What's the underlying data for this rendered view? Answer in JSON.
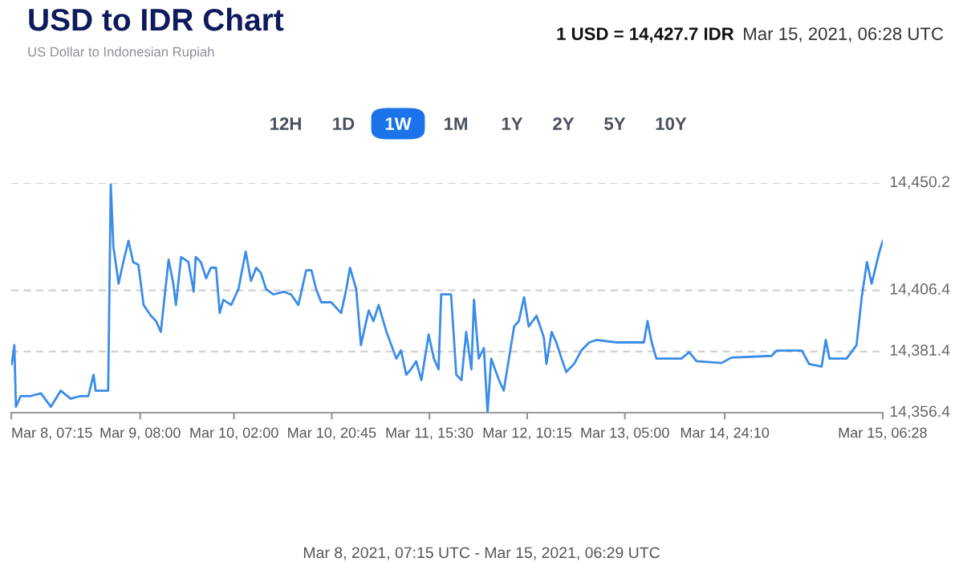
{
  "chart_data": {
    "type": "line",
    "title": "USD to IDR Chart",
    "subtitle": "US Dollar to Indonesian Rupiah",
    "annotations": [
      "1 USD = 14,427.7 IDR",
      "Mar 15, 2021, 06:28 UTC",
      "12H",
      "1D",
      "1W",
      "1M",
      "1Y",
      "2Y",
      "5Y",
      "10Y",
      "Mar 8, 2021, 07:15 UTC - Mar 15, 2021, 06:29 UTC"
    ],
    "x": [
      "2021-03-08T07:21",
      "2021-03-08T07:51",
      "2021-03-08T08:09",
      "2021-03-08T09:03",
      "2021-03-08T10:57",
      "2021-03-08T12:57",
      "2021-03-08T14:51",
      "2021-03-08T16:45",
      "2021-03-08T18:39",
      "2021-03-08T20:33",
      "2021-03-08T22:03",
      "2021-03-08T23:03",
      "2021-03-08T23:27",
      "2021-03-09T01:51",
      "2021-03-09T02:21",
      "2021-03-09T02:51",
      "2021-03-09T03:51",
      "2021-03-09T04:45",
      "2021-03-09T05:45",
      "2021-03-09T06:39",
      "2021-03-09T07:39",
      "2021-03-09T08:39",
      "2021-03-09T10:03",
      "2021-03-09T11:03",
      "2021-03-09T11:57",
      "2021-03-09T13:27",
      "2021-03-09T14:21",
      "2021-03-09T14:51",
      "2021-03-09T15:51",
      "2021-03-09T17:15",
      "2021-03-09T18:15",
      "2021-03-09T18:39",
      "2021-03-09T19:39",
      "2021-03-09T20:39",
      "2021-03-09T21:33",
      "2021-03-09T22:33",
      "2021-03-09T23:15",
      "2021-03-09T23:57",
      "2021-03-10T01:27",
      "2021-03-10T02:51",
      "2021-03-10T04:15",
      "2021-03-10T05:15",
      "2021-03-10T06:15",
      "2021-03-10T07:09",
      "2021-03-10T08:09",
      "2021-03-10T09:33",
      "2021-03-10T11:33",
      "2021-03-10T12:57",
      "2021-03-10T14:21",
      "2021-03-10T15:51",
      "2021-03-10T16:51",
      "2021-03-10T17:45",
      "2021-03-10T18:45",
      "2021-03-10T20:39",
      "2021-03-10T22:33",
      "2021-03-10T23:33",
      "2021-03-11T00:15",
      "2021-03-11T01:27",
      "2021-03-11T02:21",
      "2021-03-11T03:51",
      "2021-03-11T04:45",
      "2021-03-11T05:45",
      "2021-03-11T07:15",
      "2021-03-11T09:09",
      "2021-03-11T10:03",
      "2021-03-11T11:03",
      "2021-03-11T11:57",
      "2021-03-11T12:57",
      "2021-03-11T13:57",
      "2021-03-11T15:21",
      "2021-03-11T16:21",
      "2021-03-11T17:15",
      "2021-03-11T17:45",
      "2021-03-11T18:45",
      "2021-03-11T19:39",
      "2021-03-11T20:39",
      "2021-03-11T21:39",
      "2021-03-11T22:33",
      "2021-03-11T23:33",
      "2021-03-12T00:03",
      "2021-03-12T00:57",
      "2021-03-12T01:57",
      "2021-03-12T02:39",
      "2021-03-12T03:21",
      "2021-03-12T04:51",
      "2021-03-12T05:45",
      "2021-03-12T06:45",
      "2021-03-12T07:45",
      "2021-03-12T08:39",
      "2021-03-12T09:39",
      "2021-03-12T10:33",
      "2021-03-12T12:03",
      "2021-03-12T13:27",
      "2021-03-12T13:57",
      "2021-03-12T14:57",
      "2021-03-12T15:51",
      "2021-03-12T16:51",
      "2021-03-12T17:45",
      "2021-03-12T19:15",
      "2021-03-12T20:39",
      "2021-03-12T22:09",
      "2021-03-12T23:33",
      "2021-03-13T03:21",
      "2021-03-13T08:39",
      "2021-03-13T09:21",
      "2021-03-13T10:09",
      "2021-03-13T11:03",
      "2021-03-13T15:51",
      "2021-03-13T17:21",
      "2021-03-13T18:45",
      "2021-03-13T23:33",
      "2021-03-14T01:27",
      "2021-03-14T09:09",
      "2021-03-14T10:09",
      "2021-03-14T14:57",
      "2021-03-14T16:21",
      "2021-03-14T18:45",
      "2021-03-14T19:33",
      "2021-03-14T20:15",
      "2021-03-14T23:33",
      "2021-03-15T01:27",
      "2021-03-15T02:27",
      "2021-03-15T03:27",
      "2021-03-15T04:21",
      "2021-03-15T05:51",
      "2021-03-15T06:29"
    ],
    "series": [
      {
        "color": "#3a8ce8",
        "values": [
          14376.3,
          14384.0,
          14358.8,
          14363.2,
          14363.2,
          14364.3,
          14358.8,
          14365.4,
          14362.1,
          14363.2,
          14363.2,
          14371.9,
          14365.4,
          14365.4,
          14449.6,
          14424.4,
          14409.1,
          14417.9,
          14426.6,
          14417.9,
          14416.8,
          14400.4,
          14396.0,
          14393.8,
          14389.4,
          14418.9,
          14409.1,
          14400.4,
          14420.0,
          14417.9,
          14405.8,
          14420.0,
          14417.9,
          14411.3,
          14415.6,
          14415.6,
          14397.1,
          14402.5,
          14400.4,
          14406.9,
          14422.2,
          14410.2,
          14415.6,
          14413.5,
          14406.9,
          14404.7,
          14405.8,
          14404.7,
          14400.4,
          14414.6,
          14414.6,
          14406.9,
          14401.5,
          14401.5,
          14397.1,
          14406.9,
          14415.6,
          14406.9,
          14384.0,
          14398.2,
          14393.8,
          14400.4,
          14389.4,
          14378.5,
          14381.8,
          14371.9,
          14374.1,
          14377.4,
          14369.7,
          14388.3,
          14378.5,
          14374.1,
          14404.7,
          14404.7,
          14404.7,
          14371.9,
          14369.7,
          14389.4,
          14374.1,
          14402.5,
          14378.5,
          14382.8,
          14356.4,
          14378.5,
          14369.7,
          14365.4,
          14378.5,
          14391.6,
          14393.8,
          14403.6,
          14391.6,
          14396.0,
          14387.2,
          14376.3,
          14389.4,
          14385.1,
          14378.5,
          14373.0,
          14376.3,
          14381.8,
          14385.1,
          14386.1,
          14385.1,
          14385.1,
          14393.8,
          14385.1,
          14378.5,
          14378.5,
          14381.1,
          14377.4,
          14376.7,
          14378.9,
          14379.6,
          14381.8,
          14381.8,
          14376.3,
          14375.2,
          14386.1,
          14378.5,
          14378.5,
          14384.0,
          14403.6,
          14417.9,
          14409.1,
          14422.2,
          14426.6
        ]
      }
    ],
    "xlim": [
      "2021-03-08T07:15",
      "2021-03-15T06:29"
    ],
    "xticks": [
      {
        "value": "2021-03-08T07:15",
        "label": "Mar 8, 07:15"
      },
      {
        "value": "2021-03-09T08:00",
        "label": "Mar 9, 08:00"
      },
      {
        "value": "2021-03-10T02:00",
        "label": "Mar 10, 02:00"
      },
      {
        "value": "2021-03-10T20:45",
        "label": "Mar 10, 20:45"
      },
      {
        "value": "2021-03-11T15:30",
        "label": "Mar 11, 15:30"
      },
      {
        "value": "2021-03-12T10:15",
        "label": "Mar 12, 10:15"
      },
      {
        "value": "2021-03-13T05:00",
        "label": "Mar 13, 05:00"
      },
      {
        "value": "2021-03-14T00:10",
        "label": "Mar 14, 24:10"
      },
      {
        "value": "2021-03-15T06:28",
        "label": "Mar 15, 06:28"
      }
    ],
    "ylim": [
      14356.4,
      14450.2
    ],
    "yticks": [
      {
        "value": 14356.4,
        "label": "14,356.4"
      },
      {
        "value": 14381.4,
        "label": "14,381.4"
      },
      {
        "value": 14406.4,
        "label": "14,406.4"
      },
      {
        "value": 14450.2,
        "label": "14,450.2"
      }
    ],
    "grid": "y",
    "legend": false,
    "marker": "none",
    "line_style": "solid"
  }
}
